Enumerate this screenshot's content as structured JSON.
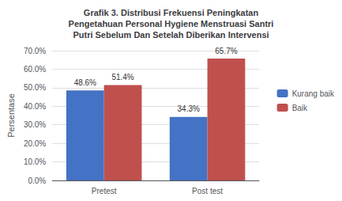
{
  "chart_data": {
    "type": "bar",
    "title": "Grafik 3. Distribusi Frekuensi Peningkatan\nPengetahuan Personal Hygiene Menstruasi Santri\nPutri Sebelum Dan Setelah Diberikan Intervensi",
    "ylabel": "Persentase",
    "categories": [
      "Pretest",
      "Post test"
    ],
    "series": [
      {
        "name": "Kurang baik",
        "color": "#4472C4",
        "values": [
          48.6,
          34.3
        ],
        "value_labels": [
          "48.6%",
          "34.3%"
        ]
      },
      {
        "name": "Baik",
        "color": "#C0504D",
        "values": [
          51.4,
          65.7
        ],
        "value_labels": [
          "51.4%",
          "65.7%"
        ]
      }
    ],
    "ylim": [
      0,
      70
    ],
    "yticks": [
      {
        "value": 0,
        "label": "0.0%"
      },
      {
        "value": 10,
        "label": "10.0%"
      },
      {
        "value": 20,
        "label": "20.0%"
      },
      {
        "value": 30,
        "label": "30.0%"
      },
      {
        "value": 40,
        "label": "40.0%"
      },
      {
        "value": 50,
        "label": "50.0%"
      },
      {
        "value": 60,
        "label": "60.0%"
      },
      {
        "value": 70,
        "label": "70.0%"
      }
    ],
    "grid": true,
    "legend": "right",
    "data_labels": true
  }
}
